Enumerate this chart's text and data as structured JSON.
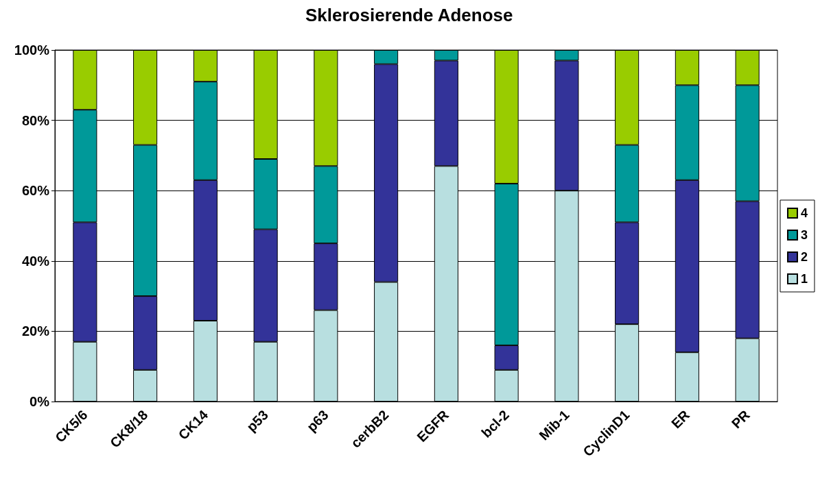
{
  "chart_data": {
    "type": "bar",
    "title": "Sklerosierende Adenose",
    "stacked": true,
    "categories": [
      "CK5/6",
      "CK8/18",
      "CK14",
      "p53",
      "p63",
      "cerbB2",
      "EGFR",
      "bcl-2",
      "Mib-1",
      "CyclinD1",
      "ER",
      "PR"
    ],
    "series": [
      {
        "name": "1",
        "color": "#b8dfe0",
        "values": [
          17,
          9,
          23,
          17,
          26,
          34,
          67,
          9,
          60,
          22,
          14,
          18
        ]
      },
      {
        "name": "2",
        "color": "#333399",
        "values": [
          34,
          21,
          40,
          32,
          19,
          62,
          30,
          7,
          37,
          29,
          49,
          39
        ]
      },
      {
        "name": "3",
        "color": "#009999",
        "values": [
          32,
          43,
          28,
          20,
          22,
          4,
          3,
          46,
          3,
          22,
          27,
          33
        ]
      },
      {
        "name": "4",
        "color": "#99cc00",
        "values": [
          17,
          27,
          9,
          31,
          33,
          0,
          0,
          38,
          0,
          27,
          10,
          10
        ]
      }
    ],
    "ylim": [
      0,
      100
    ],
    "yticks": [
      {
        "value": 0,
        "label": "0%"
      },
      {
        "value": 20,
        "label": "20%"
      },
      {
        "value": 40,
        "label": "40%"
      },
      {
        "value": 60,
        "label": "60%"
      },
      {
        "value": 80,
        "label": "80%"
      },
      {
        "value": 100,
        "label": "100%"
      }
    ],
    "grid": "y",
    "legend": "right"
  }
}
